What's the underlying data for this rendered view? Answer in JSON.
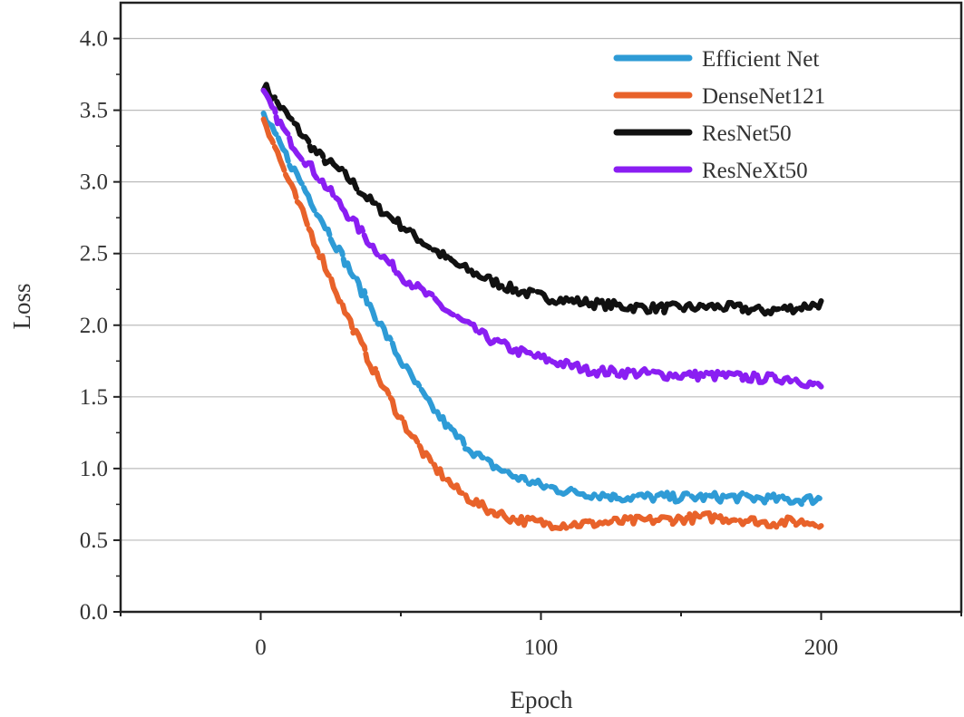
{
  "chart_data": {
    "type": "line",
    "title": "",
    "xlabel": "Epoch",
    "ylabel": "Loss",
    "xlim": [
      -50,
      250
    ],
    "ylim": [
      0,
      4.25
    ],
    "xticks": [
      0,
      100,
      200
    ],
    "xtick_labels": [
      "0",
      "100",
      "200"
    ],
    "yticks": [
      0.0,
      0.5,
      1.0,
      1.5,
      2.0,
      2.5,
      3.0,
      3.5,
      4.0
    ],
    "ytick_labels": [
      "0.0",
      "0.5",
      "1.0",
      "1.5",
      "2.0",
      "2.5",
      "3.0",
      "3.5",
      "4.0"
    ],
    "grid": "horizontal",
    "legend_position": "top-right",
    "x": [
      0,
      10,
      20,
      30,
      40,
      50,
      60,
      70,
      80,
      90,
      100,
      110,
      120,
      130,
      140,
      150,
      160,
      170,
      180,
      190,
      200
    ],
    "series": [
      {
        "name": "Efficient Net",
        "color": "#2e9bd6",
        "values": [
          3.5,
          3.15,
          2.8,
          2.45,
          2.1,
          1.75,
          1.45,
          1.22,
          1.05,
          0.95,
          0.88,
          0.84,
          0.82,
          0.8,
          0.8,
          0.8,
          0.8,
          0.8,
          0.79,
          0.78,
          0.79
        ]
      },
      {
        "name": "DenseNet121",
        "color": "#e8622a",
        "values": [
          3.5,
          3.0,
          2.55,
          2.1,
          1.7,
          1.35,
          1.05,
          0.85,
          0.72,
          0.65,
          0.62,
          0.61,
          0.62,
          0.63,
          0.64,
          0.65,
          0.66,
          0.65,
          0.62,
          0.63,
          0.62
        ]
      },
      {
        "name": "ResNet50",
        "color": "#111111",
        "values": [
          3.7,
          3.45,
          3.2,
          3.05,
          2.85,
          2.7,
          2.55,
          2.42,
          2.33,
          2.25,
          2.2,
          2.17,
          2.15,
          2.13,
          2.12,
          2.12,
          2.13,
          2.12,
          2.1,
          2.12,
          2.15
        ]
      },
      {
        "name": "ResNeXt50",
        "color": "#8a1ef2",
        "values": [
          3.65,
          3.3,
          3.05,
          2.8,
          2.55,
          2.35,
          2.2,
          2.05,
          1.92,
          1.83,
          1.77,
          1.72,
          1.68,
          1.67,
          1.66,
          1.65,
          1.65,
          1.64,
          1.63,
          1.63,
          1.57
        ]
      }
    ],
    "legend_labels": [
      "Efficient Net",
      "DenseNet121",
      "ResNet50",
      "ResNeXt50"
    ]
  }
}
